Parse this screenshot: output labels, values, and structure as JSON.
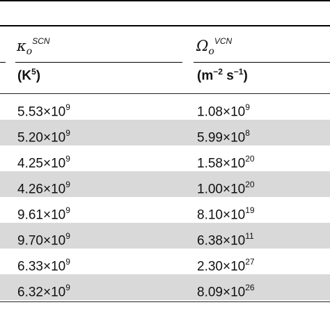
{
  "header": {
    "col1_symbol": "κ",
    "col1_sub": "o",
    "col1_sup": "SCN",
    "col2_symbol": "Ω",
    "col2_sub": "o",
    "col2_sup": "VCN"
  },
  "units": {
    "col1_base": "(K",
    "col1_exp": "5",
    "col1_close": ")",
    "col2_base1": "(m",
    "col2_exp1": "−2",
    "col2_base2": " s",
    "col2_exp2": "−1",
    "col2_close": ")"
  },
  "rows": [
    {
      "a_mant": "5.53×10",
      "a_exp": "9",
      "b_mant": "1.08×10",
      "b_exp": "9",
      "shaded": false
    },
    {
      "a_mant": "5.20×10",
      "a_exp": "9",
      "b_mant": "5.99×10",
      "b_exp": "8",
      "shaded": true
    },
    {
      "a_mant": "4.25×10",
      "a_exp": "9",
      "b_mant": "1.58×10",
      "b_exp": "20",
      "shaded": false
    },
    {
      "a_mant": "4.26×10",
      "a_exp": "9",
      "b_mant": "1.00×10",
      "b_exp": "20",
      "shaded": true
    },
    {
      "a_mant": "9.61×10",
      "a_exp": "9",
      "b_mant": "8.10×10",
      "b_exp": "19",
      "shaded": false
    },
    {
      "a_mant": "9.70×10",
      "a_exp": "9",
      "b_mant": "6.38×10",
      "b_exp": "11",
      "shaded": true
    },
    {
      "a_mant": "6.33×10",
      "a_exp": "9",
      "b_mant": "2.30×10",
      "b_exp": "27",
      "shaded": false
    },
    {
      "a_mant": "6.32×10",
      "a_exp": "9",
      "b_mant": "8.09×10",
      "b_exp": "26",
      "shaded": true
    }
  ]
}
